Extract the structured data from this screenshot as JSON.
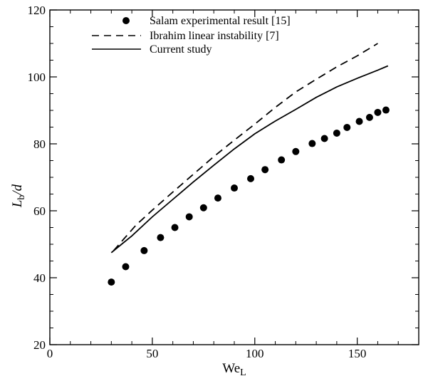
{
  "chart_data": {
    "type": "line",
    "title": "",
    "xlabel": {
      "main": "We",
      "sub": "L"
    },
    "ylabel": {
      "main": "L",
      "sub": "b",
      "rest": "/d"
    },
    "xlim": [
      0,
      180
    ],
    "ylim": [
      20,
      120
    ],
    "xticks": [
      0,
      50,
      100,
      150
    ],
    "yticks": [
      20,
      40,
      60,
      80,
      100,
      120
    ],
    "grid": false,
    "legend_position": "top-center",
    "series": [
      {
        "name": "Salam experimental result [15]",
        "style": "markers",
        "color": "#000000",
        "x": [
          30,
          37,
          46,
          54,
          61,
          68,
          75,
          82,
          90,
          98,
          105,
          113,
          120,
          128,
          134,
          140,
          145,
          151,
          156,
          160,
          164
        ],
        "y": [
          38.7,
          43.3,
          48.1,
          52.0,
          55.0,
          58.2,
          60.9,
          63.8,
          66.8,
          69.6,
          72.3,
          75.2,
          77.7,
          80.1,
          81.6,
          83.2,
          84.9,
          86.7,
          87.9,
          89.4,
          90.1
        ]
      },
      {
        "name": "Ibrahim linear instability [7]",
        "style": "dashed",
        "color": "#000000",
        "x": [
          31,
          36,
          42,
          50,
          60,
          70,
          80,
          90,
          100,
          110,
          120,
          130,
          140,
          150,
          160
        ],
        "y": [
          48.0,
          51.5,
          55.7,
          60.2,
          65.6,
          70.9,
          76.2,
          81.1,
          85.9,
          90.9,
          95.5,
          99.3,
          103.0,
          106.3,
          110.0
        ]
      },
      {
        "name": "Current study",
        "style": "solid",
        "color": "#000000",
        "x": [
          30,
          35,
          40,
          50,
          60,
          70,
          80,
          90,
          100,
          110,
          120,
          130,
          140,
          150,
          160,
          165
        ],
        "y": [
          47.5,
          50.0,
          52.5,
          58.2,
          63.4,
          68.6,
          73.6,
          78.5,
          83.0,
          86.8,
          90.3,
          93.9,
          97.0,
          99.6,
          102.0,
          103.3
        ]
      }
    ]
  }
}
